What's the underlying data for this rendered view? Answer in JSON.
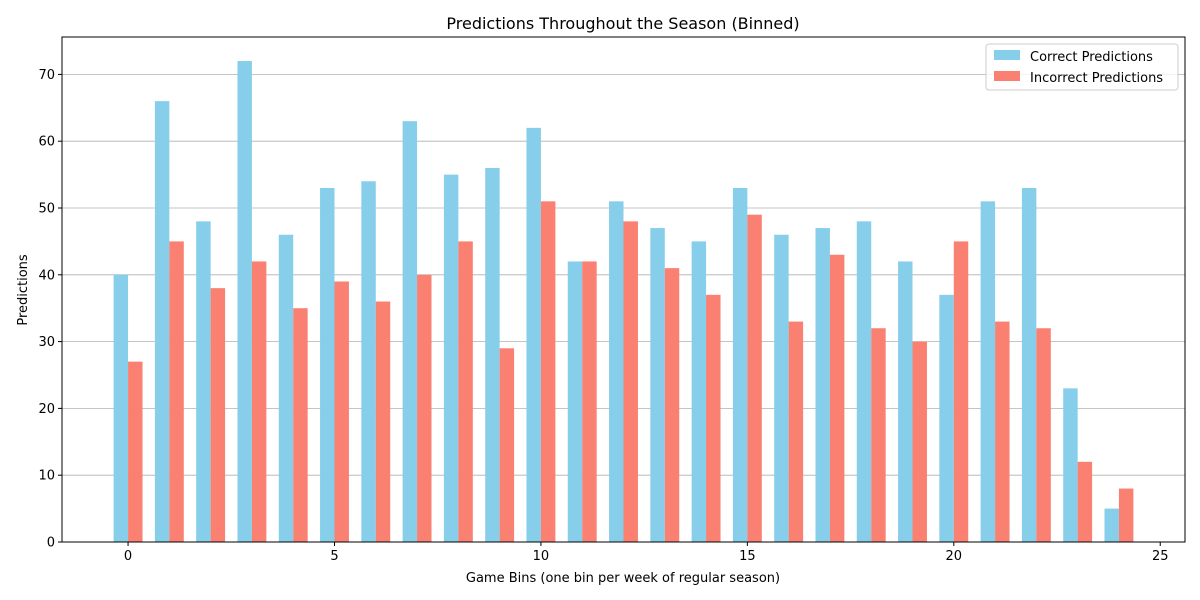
{
  "chart_data": {
    "type": "bar",
    "title": "Predictions Throughout the Season (Binned)",
    "xlabel": "Game Bins (one bin per week of regular season)",
    "ylabel": "Predictions",
    "xlim": [
      -1.6,
      25.6
    ],
    "ylim": [
      0,
      75.6
    ],
    "xticks": [
      0,
      5,
      10,
      15,
      20,
      25
    ],
    "yticks": [
      0,
      10,
      20,
      30,
      40,
      50,
      60,
      70
    ],
    "grid": "y",
    "legend_position": "top-right",
    "x": [
      0,
      1,
      2,
      3,
      4,
      5,
      6,
      7,
      8,
      9,
      10,
      11,
      12,
      13,
      14,
      15,
      16,
      17,
      18,
      19,
      20,
      21,
      22,
      23,
      24
    ],
    "series": [
      {
        "name": "Correct Predictions",
        "color": "#87ceeb",
        "values": [
          40,
          66,
          48,
          72,
          46,
          53,
          54,
          63,
          55,
          56,
          62,
          42,
          51,
          47,
          45,
          53,
          46,
          47,
          48,
          42,
          37,
          51,
          53,
          23,
          5
        ]
      },
      {
        "name": "Incorrect Predictions",
        "color": "#fa8072",
        "values": [
          27,
          45,
          38,
          42,
          35,
          39,
          36,
          40,
          45,
          29,
          51,
          42,
          48,
          41,
          37,
          49,
          33,
          43,
          32,
          30,
          45,
          33,
          32,
          12,
          8
        ]
      }
    ]
  }
}
